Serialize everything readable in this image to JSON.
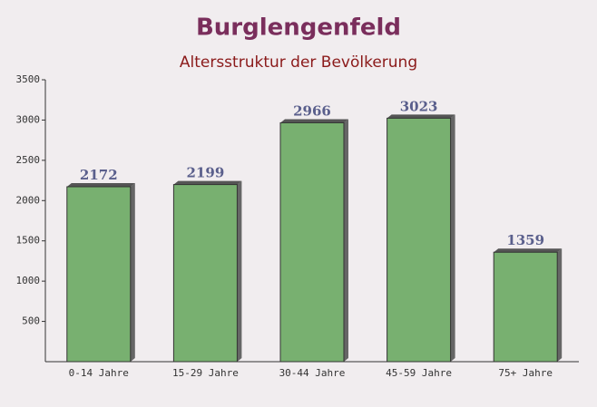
{
  "chart_data": {
    "type": "bar",
    "title": "Burglengenfeld",
    "subtitle": "Altersstruktur der Bevölkerung",
    "categories": [
      "0-14 Jahre",
      "15-29 Jahre",
      "30-44 Jahre",
      "45-59 Jahre",
      "75+ Jahre"
    ],
    "values": [
      2172,
      2199,
      2966,
      3023,
      1359
    ],
    "color": "#6aa862",
    "ylim": [
      0,
      3500
    ],
    "yticks": [
      500,
      1000,
      1500,
      2000,
      2500,
      3000,
      3500
    ],
    "grid": false
  }
}
